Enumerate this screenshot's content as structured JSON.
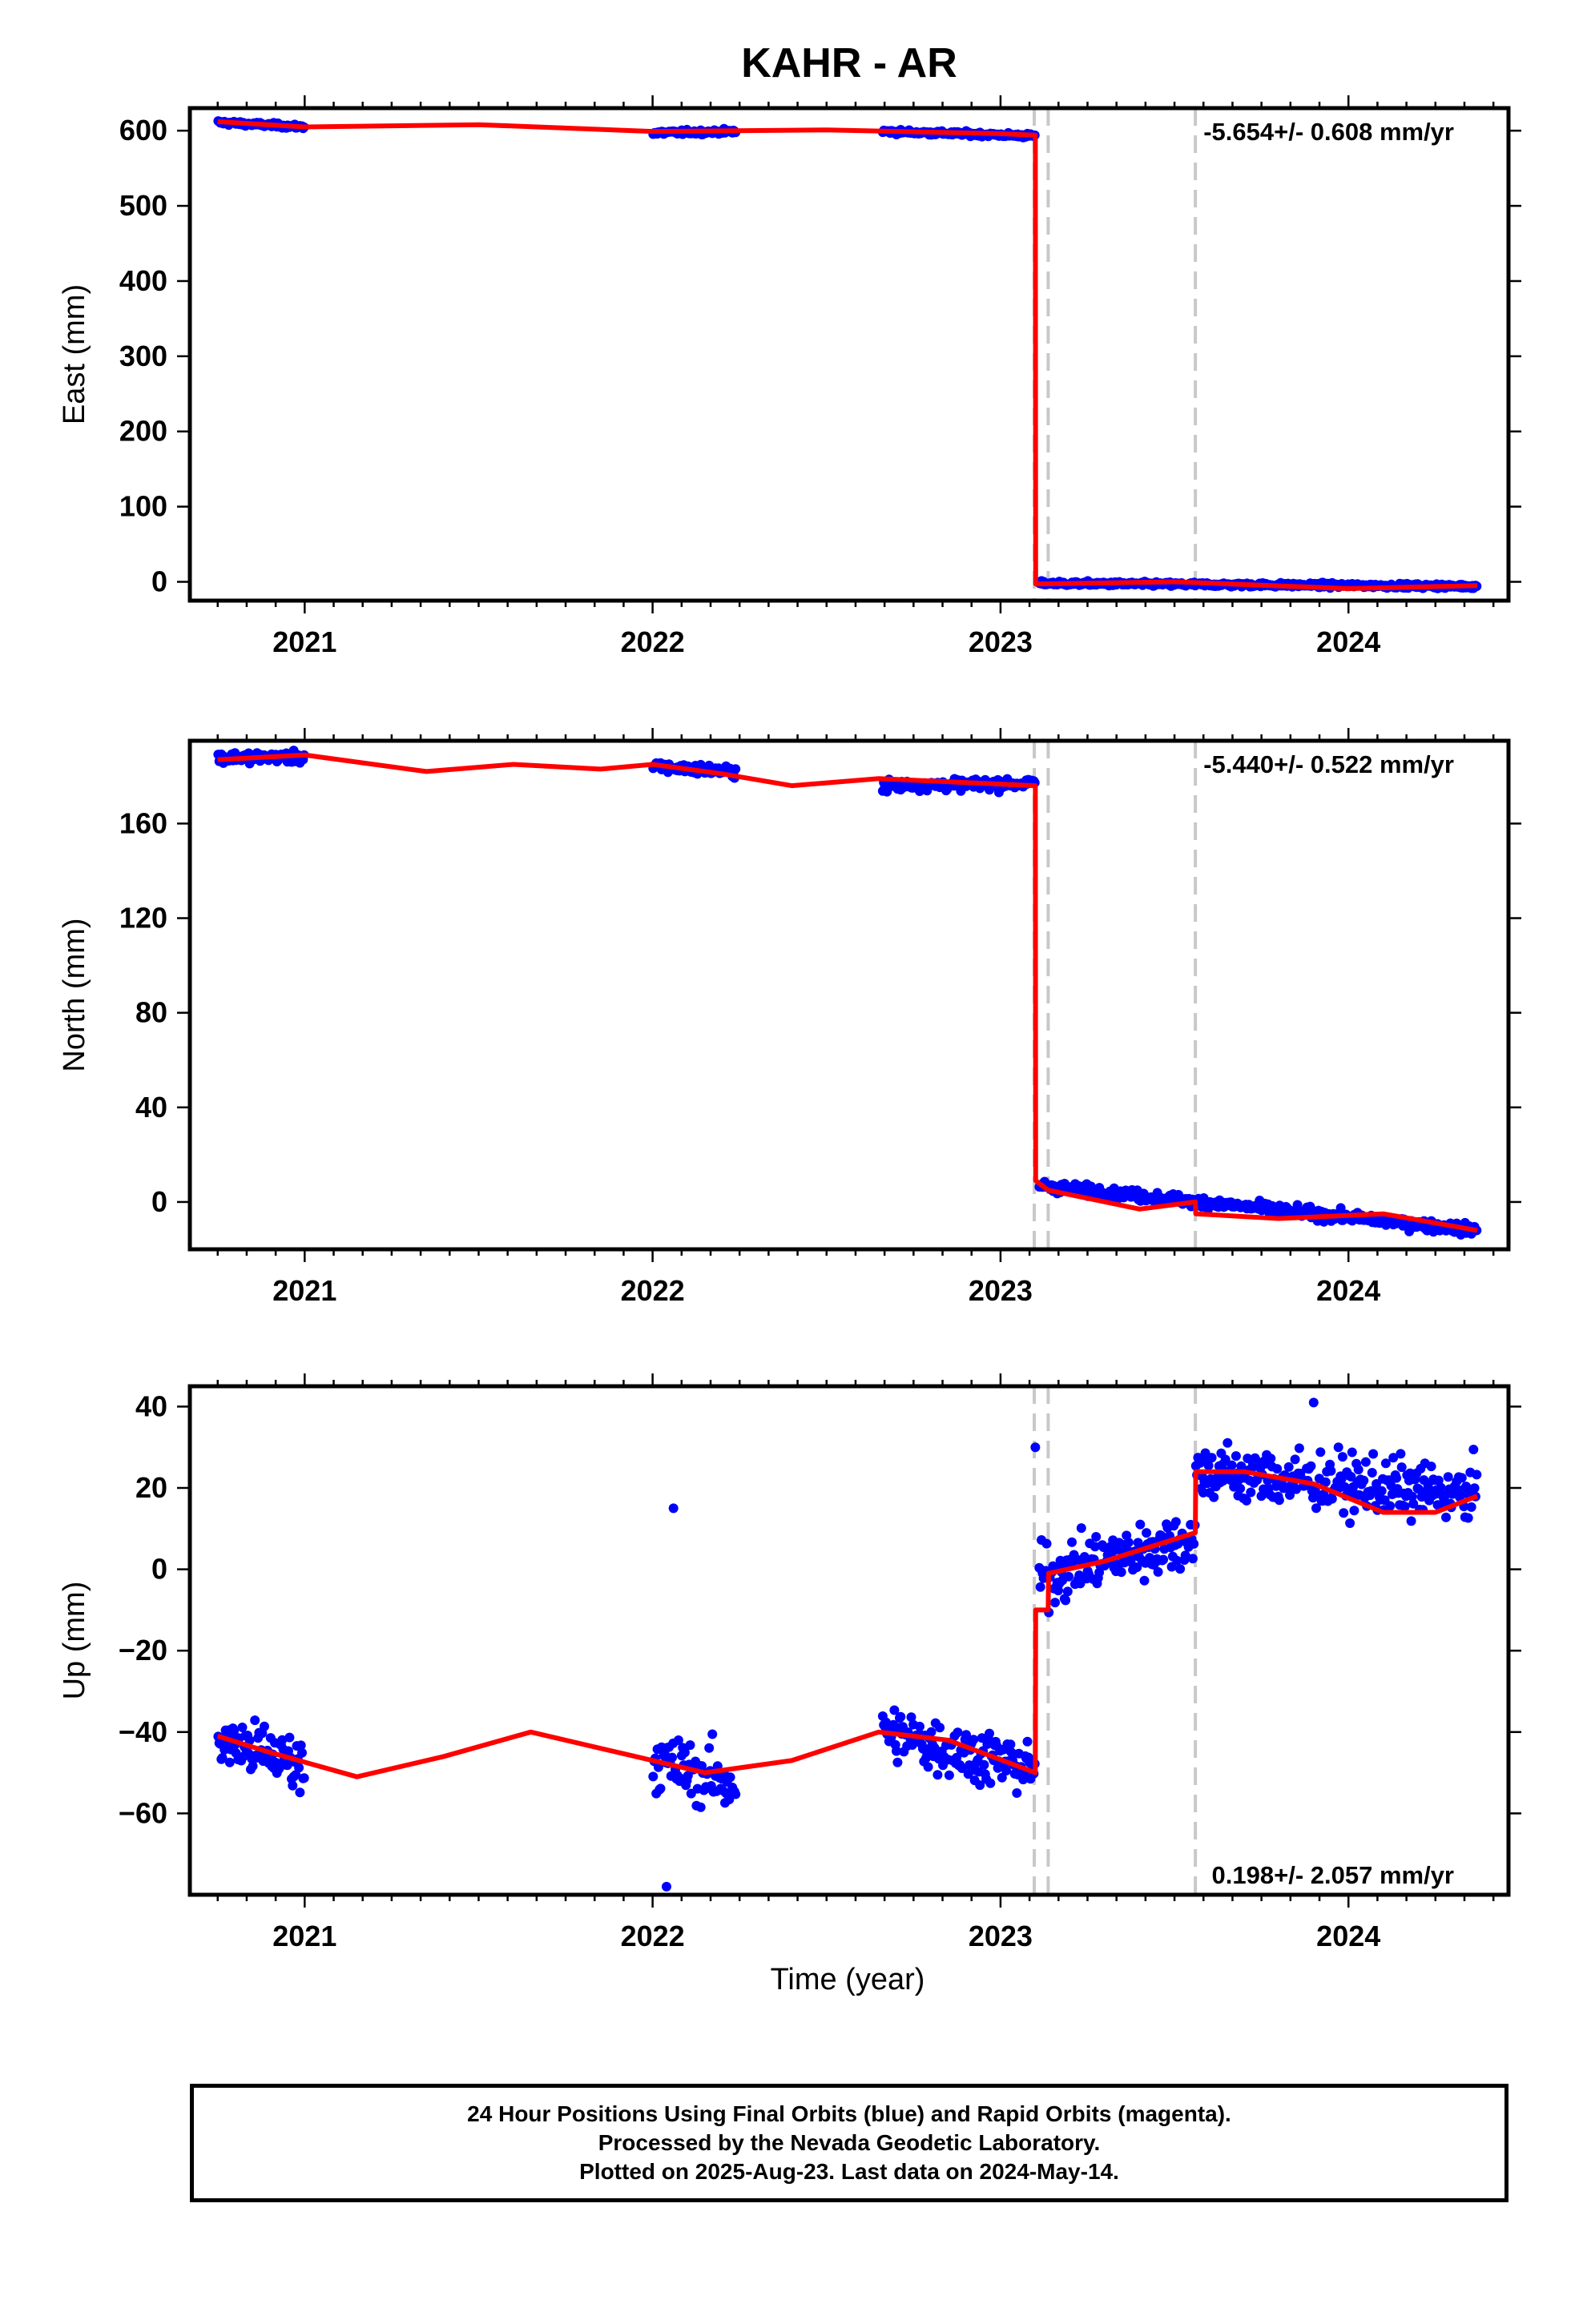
{
  "chart_data": {
    "type": "scatter",
    "title": "KAHR - AR",
    "xlabel": "Time (year)",
    "x_ticks": [
      "2021",
      "2022",
      "2023",
      "2024"
    ],
    "xlim": [
      2020.67,
      2024.46
    ],
    "colors": {
      "data": "#0000ff",
      "model": "#ff0000",
      "offset_line": "#c8c8c8"
    },
    "offset_lines": [
      2023.097,
      2023.137,
      2023.56
    ],
    "grid": false,
    "legend": "none",
    "panels": [
      {
        "name": "east",
        "ylabel": "East (mm)",
        "ylim": [
          -25,
          630
        ],
        "y_ticks": [
          0,
          100,
          200,
          300,
          400,
          500,
          600
        ],
        "rate_label": "-5.654+/- 0.608 mm/yr",
        "rate_position": "top-right",
        "series": [
          {
            "type": "scatter",
            "segments": [
              {
                "x": [
                  2020.75,
                  2021.0
                ],
                "y": [
                  611,
                  605
                ]
              },
              {
                "x": [
                  2022.0,
                  2022.24
                ],
                "y": [
                  597,
                  599
                ]
              },
              {
                "x": [
                  2022.66,
                  2023.1
                ],
                "y": [
                  599,
                  593
                ]
              },
              {
                "x": [
                  2023.11,
                  2024.37
                ],
                "y": [
                  -2,
                  -6
                ]
              }
            ]
          },
          {
            "type": "line",
            "x": [
              2020.75,
              2021.0,
              2021.5,
              2022.0,
              2022.5,
              2023.0,
              2023.1,
              2023.101,
              2023.5,
              2024.0,
              2024.37
            ],
            "y": [
              612,
              605,
              608,
              599,
              601,
              596,
              594,
              -3,
              0,
              -9,
              -5
            ]
          }
        ]
      },
      {
        "name": "north",
        "ylabel": "North (mm)",
        "ylim": [
          -20,
          195
        ],
        "y_ticks": [
          0,
          40,
          80,
          120,
          160
        ],
        "rate_label": "-5.440+/- 0.522 mm/yr",
        "rate_position": "top-right",
        "series": [
          {
            "type": "scatter",
            "segments": [
              {
                "x": [
                  2020.75,
                  2021.0
                ],
                "y": [
                  188,
                  188
                ]
              },
              {
                "x": [
                  2022.0,
                  2022.24
                ],
                "y": [
                  184,
                  182
                ]
              },
              {
                "x": [
                  2022.66,
                  2023.1
                ],
                "y": [
                  176,
                  177
                ]
              },
              {
                "x": [
                  2023.11,
                  2024.37
                ],
                "y": [
                  7,
                  -12
                ]
              }
            ]
          },
          {
            "type": "line",
            "x": [
              2020.75,
              2021.0,
              2021.35,
              2021.6,
              2021.85,
              2022.0,
              2022.2,
              2022.4,
              2022.65,
              2023.1,
              2023.101,
              2023.137,
              2023.4,
              2023.56,
              2023.561,
              2023.8,
              2024.1,
              2024.37
            ],
            "y": [
              187,
              189,
              182,
              185,
              183,
              185,
              181,
              176,
              179,
              176,
              9,
              5,
              -3,
              0,
              -5,
              -7,
              -5,
              -12
            ]
          }
        ]
      },
      {
        "name": "up",
        "ylabel": "Up (mm)",
        "ylim": [
          -80,
          45
        ],
        "y_ticks": [
          -60,
          -40,
          -20,
          0,
          20,
          40
        ],
        "rate_label": "0.198+/- 2.057 mm/yr",
        "rate_position": "bottom-right",
        "series": [
          {
            "type": "scatter",
            "segments": [
              {
                "x": [
                  2020.75,
                  2021.0
                ],
                "y": [
                  -42,
                  -48
                ]
              },
              {
                "x": [
                  2022.0,
                  2022.24
                ],
                "y": [
                  -47,
                  -53
                ]
              },
              {
                "x": [
                  2022.66,
                  2023.1
                ],
                "y": [
                  -40,
                  -49
                ]
              },
              {
                "x": [
                  2023.11,
                  2023.56
                ],
                "y": [
                  -2,
                  8
                ]
              },
              {
                "x": [
                  2023.56,
                  2024.37
                ],
                "y": [
                  24,
                  18
                ]
              }
            ],
            "outliers": [
              {
                "x": 2022.06,
                "y": 15
              },
              {
                "x": 2022.04,
                "y": -78
              },
              {
                "x": 2023.1,
                "y": 30
              },
              {
                "x": 2023.9,
                "y": 41
              }
            ]
          },
          {
            "type": "line",
            "x": [
              2020.75,
              2020.9,
              2021.15,
              2021.4,
              2021.65,
              2021.9,
              2022.15,
              2022.4,
              2022.65,
              2022.85,
              2023.1,
              2023.101,
              2023.137,
              2023.138,
              2023.3,
              2023.56,
              2023.561,
              2023.7,
              2023.9,
              2024.1,
              2024.25,
              2024.37
            ],
            "y": [
              -41,
              -45,
              -51,
              -46,
              -40,
              -45,
              -50,
              -47,
              -40,
              -42,
              -50,
              -10,
              -10,
              -1,
              2,
              9,
              24,
              24,
              21,
              14,
              14,
              18
            ]
          }
        ]
      }
    ]
  },
  "footer": {
    "line1": "24 Hour Positions Using Final Orbits (blue) and Rapid Orbits (magenta).",
    "line2": "Processed by the Nevada Geodetic Laboratory.",
    "line3": "Plotted on 2025-Aug-23. Last data on 2024-May-14."
  }
}
